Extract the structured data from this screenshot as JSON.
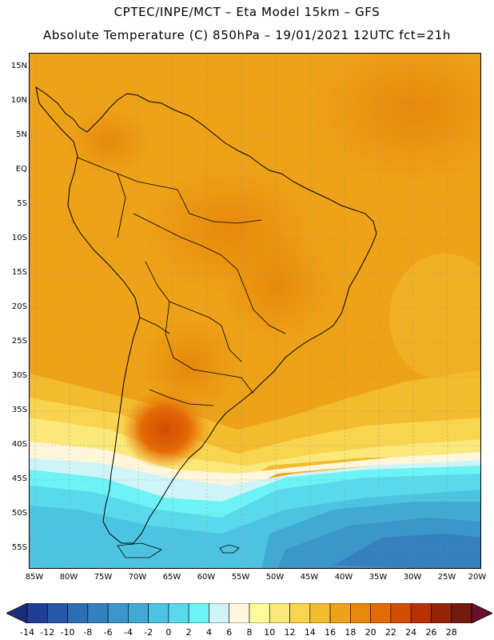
{
  "title": {
    "line1": "CPTEC/INPE/MCT  –   Eta Model 15km  –  GFS",
    "line2": "Absolute Temperature (C) 850hPa – 19/01/2021 12UTC fct=21h"
  },
  "map": {
    "lat_labels": [
      "15N",
      "10N",
      "5N",
      "EQ",
      "5S",
      "10S",
      "15S",
      "20S",
      "25S",
      "30S",
      "35S",
      "40S",
      "45S",
      "50S",
      "55S"
    ],
    "lon_labels": [
      "85W",
      "80W",
      "75W",
      "70W",
      "65W",
      "60W",
      "55W",
      "50W",
      "45W",
      "40W",
      "35W",
      "30W",
      "25W",
      "20W"
    ]
  },
  "legend": {
    "labels": [
      "-14",
      "-12",
      "-10",
      "-8",
      "-6",
      "-4",
      "-2",
      "0",
      "2",
      "4",
      "6",
      "8",
      "10",
      "12",
      "14",
      "16",
      "18",
      "20",
      "22",
      "24",
      "26",
      "28"
    ],
    "colors": [
      "#1f3f96",
      "#2657a8",
      "#2d6db5",
      "#3580bf",
      "#3b96c9",
      "#41aad3",
      "#4cc4e1",
      "#5ad9ec",
      "#6cf3f5",
      "#cff4f8",
      "#fff6dc",
      "#fffb9a",
      "#fbe87a",
      "#f8d44f",
      "#f3bb2e",
      "#eda217",
      "#e8880b",
      "#e46a04",
      "#d44b02",
      "#b93004",
      "#972309",
      "#731b0e"
    ],
    "left_arrow_color": "#1c2e78",
    "right_arrow_color": "#6a0f2c"
  }
}
